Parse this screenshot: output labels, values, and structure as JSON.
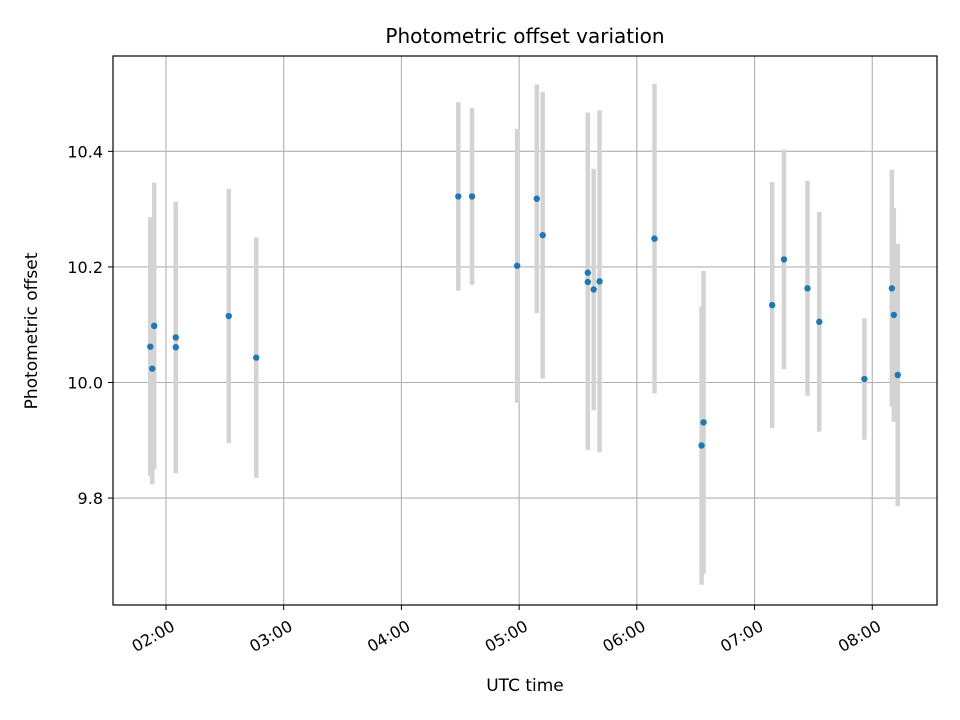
{
  "chart_data": {
    "type": "scatter",
    "title": "Photometric offset variation",
    "xlabel": "UTC time",
    "ylabel": "Photometric offset",
    "xlim": [
      "01:33",
      "08:33"
    ],
    "ylim": [
      9.615,
      10.565
    ],
    "xticks": [
      "02:00",
      "03:00",
      "04:00",
      "05:00",
      "06:00",
      "07:00",
      "08:00"
    ],
    "yticks": [
      9.8,
      10.0,
      10.2,
      10.4
    ],
    "grid": true,
    "colors": {
      "marker": "#1f77b4",
      "errorbar": "#d3d3d3",
      "grid": "#b0b0b0"
    },
    "points": [
      {
        "t": "01:52",
        "y": 10.062,
        "err": 0.224
      },
      {
        "t": "01:53",
        "y": 10.024,
        "err": 0.2
      },
      {
        "t": "01:54",
        "y": 10.098,
        "err": 0.248
      },
      {
        "t": "02:05",
        "y": 10.078,
        "err": 0.235
      },
      {
        "t": "02:05",
        "y": 10.061,
        "err": 0.21
      },
      {
        "t": "02:32",
        "y": 10.115,
        "err": 0.22
      },
      {
        "t": "02:46",
        "y": 10.043,
        "err": 0.208
      },
      {
        "t": "04:29",
        "y": 10.322,
        "err": 0.163
      },
      {
        "t": "04:36",
        "y": 10.322,
        "err": 0.153
      },
      {
        "t": "04:59",
        "y": 10.202,
        "err": 0.237
      },
      {
        "t": "05:09",
        "y": 10.318,
        "err": 0.198
      },
      {
        "t": "05:12",
        "y": 10.255,
        "err": 0.248
      },
      {
        "t": "05:35",
        "y": 10.19,
        "err": 0.277
      },
      {
        "t": "05:35",
        "y": 10.174,
        "err": 0.291
      },
      {
        "t": "05:38",
        "y": 10.161,
        "err": 0.209
      },
      {
        "t": "05:41",
        "y": 10.175,
        "err": 0.296
      },
      {
        "t": "06:09",
        "y": 10.249,
        "err": 0.268
      },
      {
        "t": "06:33",
        "y": 9.891,
        "err": 0.241
      },
      {
        "t": "06:34",
        "y": 9.931,
        "err": 0.262
      },
      {
        "t": "07:09",
        "y": 10.134,
        "err": 0.213
      },
      {
        "t": "07:15",
        "y": 10.213,
        "err": 0.19
      },
      {
        "t": "07:27",
        "y": 10.163,
        "err": 0.186
      },
      {
        "t": "07:33",
        "y": 10.105,
        "err": 0.19
      },
      {
        "t": "07:56",
        "y": 10.006,
        "err": 0.105
      },
      {
        "t": "08:10",
        "y": 10.163,
        "err": 0.205
      },
      {
        "t": "08:11",
        "y": 10.117,
        "err": 0.185
      },
      {
        "t": "08:13",
        "y": 10.013,
        "err": 0.227
      }
    ]
  }
}
